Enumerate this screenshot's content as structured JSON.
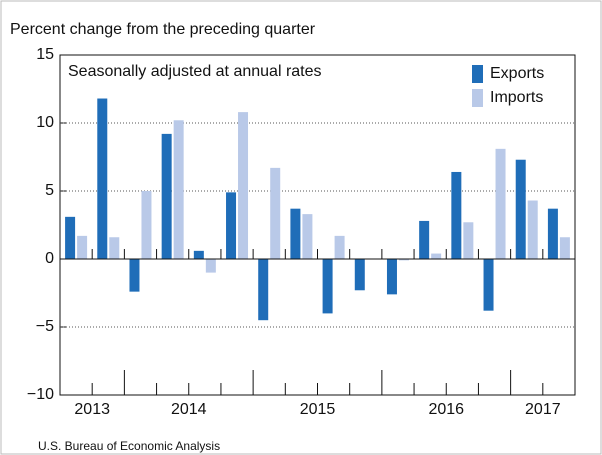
{
  "chart_data": {
    "type": "bar",
    "title": "Percent change from the preceding quarter",
    "annotation": "Seasonally adjusted at annual rates",
    "source": "U.S. Bureau of Economic Analysis",
    "categories": [
      null,
      null,
      null,
      null,
      null,
      null,
      null,
      null,
      null,
      null,
      null,
      null,
      null,
      null,
      null,
      null
    ],
    "year_groups": [
      {
        "label": "2013",
        "count": 2
      },
      {
        "label": "2014",
        "count": 4
      },
      {
        "label": "2015",
        "count": 4
      },
      {
        "label": "2016",
        "count": 4
      },
      {
        "label": "2017",
        "count": 2
      }
    ],
    "series": [
      {
        "name": "Exports",
        "color": "#1f6db8",
        "values": [
          3.1,
          11.8,
          -2.4,
          9.2,
          0.6,
          4.9,
          -4.5,
          3.7,
          -4.0,
          -2.3,
          -2.6,
          2.8,
          6.4,
          -3.8,
          7.3,
          3.7
        ]
      },
      {
        "name": "Imports",
        "color": "#b9c9e8",
        "values": [
          1.7,
          1.6,
          5.0,
          10.2,
          -1.0,
          10.8,
          6.7,
          3.3,
          1.7,
          0.0,
          -0.1,
          0.4,
          2.7,
          8.1,
          4.3,
          1.6
        ]
      }
    ],
    "ylim": [
      -10,
      15
    ],
    "yticks": [
      {
        "value": -10,
        "label": "−10"
      },
      {
        "value": -5,
        "label": "−5"
      },
      0,
      5,
      10,
      15
    ],
    "grid": true,
    "legend": "top-right"
  }
}
